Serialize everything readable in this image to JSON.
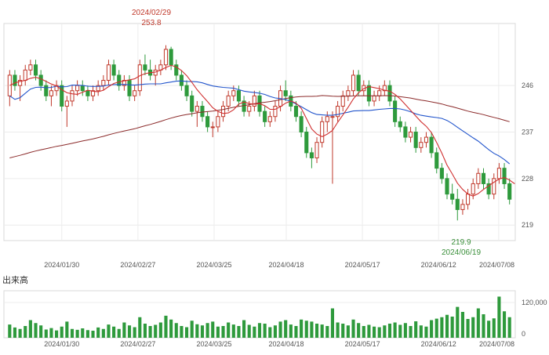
{
  "chart_data": {
    "type": "candlestick",
    "price_panel": {
      "ylim": [
        216,
        258
      ],
      "y_ticks": [
        219,
        228,
        237,
        246
      ],
      "x_ticks": [
        "2024/01/30",
        "2024/02/27",
        "2024/03/25",
        "2024/04/18",
        "2024/05/17",
        "2024/06/12",
        "2024/07/08"
      ],
      "annotations": {
        "high_date": "2024/02/29",
        "high_value": "253.8",
        "low_value": "219.9",
        "low_date": "2024/06/19"
      },
      "colors": {
        "up": "#c0392b",
        "down": "#2e9a3c",
        "ma_short": "#d03030",
        "ma_mid": "#2255cc",
        "ma_long": "#8b2a2a"
      }
    },
    "volume_panel": {
      "title": "出来高",
      "y_ticks": [
        "0",
        "120,000"
      ],
      "ylim": [
        0,
        160000
      ],
      "x_ticks": [
        "2024/01/30",
        "2024/02/27",
        "2024/03/25",
        "2024/04/18",
        "2024/05/17",
        "2024/06/12",
        "2024/07/08"
      ],
      "bar_color": "#2e9a3c"
    },
    "candles": [
      [
        244,
        249,
        242,
        248,
        45000
      ],
      [
        248,
        249,
        245,
        246,
        35000
      ],
      [
        246,
        248,
        243,
        247,
        30000
      ],
      [
        247,
        250,
        246,
        249,
        40000
      ],
      [
        249,
        251,
        248,
        250,
        60000
      ],
      [
        250,
        251,
        247,
        248,
        50000
      ],
      [
        248,
        249,
        245,
        246,
        42000
      ],
      [
        246,
        247,
        243,
        244,
        28000
      ],
      [
        244,
        246,
        242,
        245,
        33000
      ],
      [
        245,
        247,
        244,
        246,
        25000
      ],
      [
        246,
        247,
        241,
        242,
        38000
      ],
      [
        242,
        244,
        238,
        243,
        55000
      ],
      [
        243,
        246,
        242,
        245,
        30000
      ],
      [
        245,
        247,
        244,
        246,
        27000
      ],
      [
        246,
        247,
        244,
        245,
        32000
      ],
      [
        245,
        246,
        243,
        244,
        26000
      ],
      [
        244,
        246,
        243,
        245,
        24000
      ],
      [
        245,
        247,
        244,
        246,
        35000
      ],
      [
        246,
        248,
        245,
        247,
        30000
      ],
      [
        247,
        251,
        246,
        250,
        45000
      ],
      [
        250,
        251,
        247,
        248,
        38000
      ],
      [
        248,
        249,
        245,
        246,
        30000
      ],
      [
        246,
        248,
        245,
        247,
        52000
      ],
      [
        247,
        248,
        243,
        244,
        42000
      ],
      [
        244,
        246,
        243,
        245,
        36000
      ],
      [
        245,
        251,
        244,
        250,
        70000
      ],
      [
        250,
        252,
        248,
        249,
        48000
      ],
      [
        249,
        251,
        247,
        248,
        40000
      ],
      [
        248,
        250,
        246,
        249,
        44000
      ],
      [
        249,
        251,
        248,
        250,
        52000
      ],
      [
        250,
        253.8,
        249,
        253,
        75000
      ],
      [
        253,
        253.5,
        249,
        250,
        62000
      ],
      [
        250,
        251,
        247,
        248,
        50000
      ],
      [
        248,
        249,
        245,
        246,
        40000
      ],
      [
        246,
        247,
        243,
        244,
        36000
      ],
      [
        244,
        245,
        240,
        241,
        58000
      ],
      [
        241,
        243,
        238,
        242,
        46000
      ],
      [
        242,
        243,
        239,
        240,
        42000
      ],
      [
        240,
        241,
        237,
        238,
        50000
      ],
      [
        238,
        239,
        236,
        238,
        55000
      ],
      [
        238,
        241,
        237,
        240,
        38000
      ],
      [
        240,
        243,
        239,
        242,
        40000
      ],
      [
        242,
        245,
        241,
        244,
        52000
      ],
      [
        244,
        246,
        243,
        245,
        45000
      ],
      [
        245,
        246,
        242,
        243,
        40000
      ],
      [
        243,
        244,
        240,
        241,
        60000
      ],
      [
        241,
        243,
        240,
        242,
        44000
      ],
      [
        242,
        245,
        241,
        244,
        38000
      ],
      [
        244,
        245,
        240,
        241,
        50000
      ],
      [
        241,
        242,
        238,
        239,
        48000
      ],
      [
        239,
        241,
        238,
        240,
        36000
      ],
      [
        240,
        243,
        239,
        242,
        42000
      ],
      [
        242,
        246,
        241,
        245,
        55000
      ],
      [
        245,
        247,
        243,
        244,
        60000
      ],
      [
        244,
        245,
        241,
        242,
        45000
      ],
      [
        242,
        243,
        239,
        240,
        40000
      ],
      [
        240,
        241,
        236,
        237,
        62000
      ],
      [
        237,
        238,
        232,
        233,
        58000
      ],
      [
        233,
        234,
        230,
        232,
        55000
      ],
      [
        232,
        236,
        231,
        235,
        48000
      ],
      [
        235,
        240,
        234,
        239,
        45000
      ],
      [
        239,
        241,
        237,
        240,
        40000
      ],
      [
        240,
        241,
        227,
        240,
        100000
      ],
      [
        240,
        243,
        239,
        242,
        52000
      ],
      [
        242,
        245,
        241,
        244,
        48000
      ],
      [
        244,
        246,
        243,
        245,
        42000
      ],
      [
        245,
        249,
        244,
        248,
        62000
      ],
      [
        248,
        249,
        244,
        245,
        50000
      ],
      [
        245,
        247,
        244,
        246,
        40000
      ],
      [
        246,
        247,
        242,
        243,
        44000
      ],
      [
        243,
        245,
        242,
        244,
        38000
      ],
      [
        244,
        246,
        243,
        245,
        36000
      ],
      [
        245,
        247,
        244,
        246,
        42000
      ],
      [
        246,
        247,
        242,
        243,
        48000
      ],
      [
        243,
        244,
        238,
        239,
        52000
      ],
      [
        239,
        240,
        237,
        238,
        44000
      ],
      [
        238,
        239,
        235,
        236,
        50000
      ],
      [
        236,
        238,
        235,
        237,
        40000
      ],
      [
        237,
        238,
        233,
        234,
        56000
      ],
      [
        234,
        236,
        233,
        235,
        42000
      ],
      [
        235,
        237,
        234,
        236,
        38000
      ],
      [
        236,
        237,
        232,
        233,
        60000
      ],
      [
        233,
        234,
        229,
        230,
        65000
      ],
      [
        230,
        231,
        227,
        228,
        70000
      ],
      [
        228,
        229,
        224,
        225,
        78000
      ],
      [
        225,
        227,
        223,
        224,
        72000
      ],
      [
        224,
        226,
        219.9,
        222,
        105000
      ],
      [
        222,
        224,
        221,
        223,
        88000
      ],
      [
        223,
        226,
        222,
        225,
        64000
      ],
      [
        225,
        228,
        224,
        227,
        70000
      ],
      [
        227,
        230,
        226,
        229,
        100000
      ],
      [
        229,
        230,
        226,
        227,
        80000
      ],
      [
        227,
        228,
        224,
        225,
        58000
      ],
      [
        225,
        229,
        224,
        228,
        66000
      ],
      [
        228,
        231,
        227,
        230,
        140000
      ],
      [
        230,
        231,
        226,
        227,
        90000
      ],
      [
        227,
        228,
        223,
        224,
        70000
      ]
    ],
    "moving_averages": {
      "short": [
        246,
        246.5,
        246.8,
        247,
        247.4,
        247.6,
        247.3,
        246.8,
        246.3,
        245.9,
        245.2,
        244.6,
        244.4,
        244.3,
        244.7,
        245.1,
        244.9,
        244.8,
        245.1,
        245.8,
        246.4,
        246.7,
        246.9,
        247.1,
        247.3,
        247.9,
        248.3,
        248.5,
        248.6,
        249,
        249.5,
        249.9,
        249.6,
        248.9,
        247.9,
        246.6,
        245.2,
        244,
        242.9,
        241.7,
        241,
        240.6,
        240.7,
        241.3,
        242.4,
        242.8,
        242.5,
        242.4,
        242.5,
        242.1,
        241.4,
        241.4,
        241.9,
        242.6,
        243,
        242.6,
        241.6,
        239.6,
        237.6,
        236.6,
        236.1,
        236.6,
        237.3,
        238.9,
        240.3,
        241.8,
        243.4,
        244.6,
        245.4,
        245.8,
        245.6,
        245.4,
        245.1,
        244.9,
        244.3,
        243.4,
        242.3,
        241.2,
        240.1,
        239,
        238.1,
        236.9,
        235,
        232.9,
        230.6,
        228.9,
        227.1,
        225.9,
        225,
        224.6,
        225.1,
        225.9,
        226.6,
        227.3,
        227.9,
        228.2,
        227.7,
        227
      ]
    }
  }
}
